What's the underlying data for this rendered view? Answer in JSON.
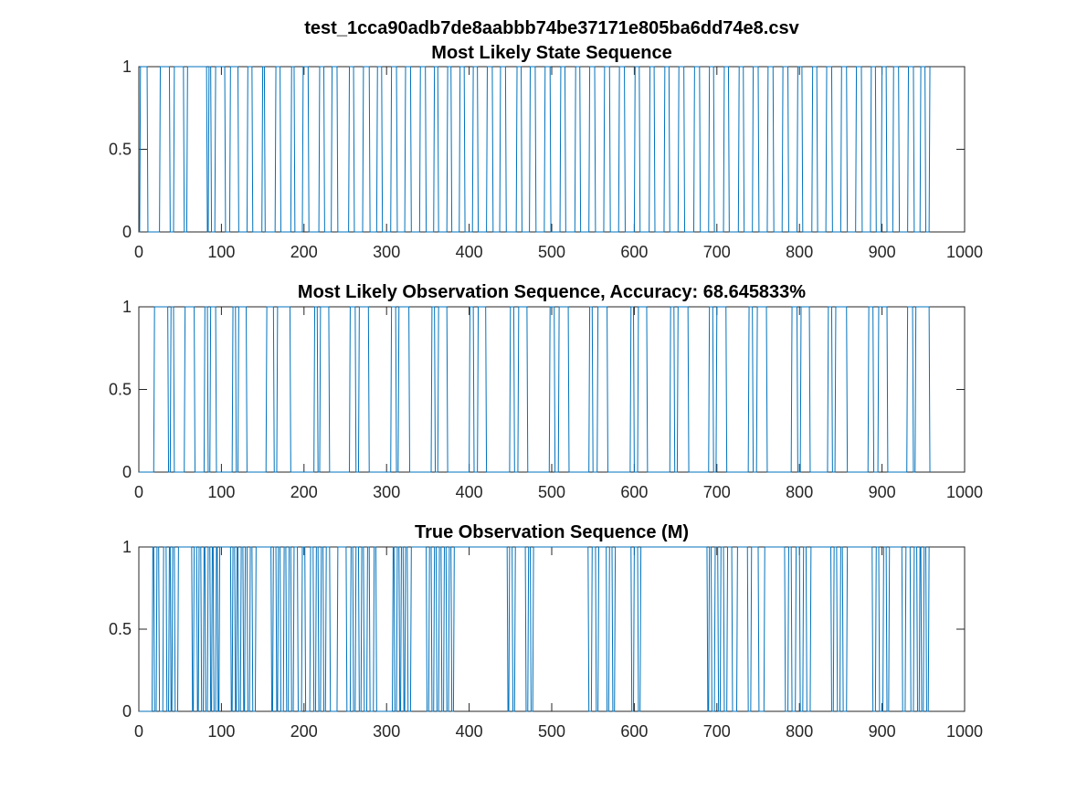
{
  "figure": {
    "suptitle": "test_1cca90adb7de8aabbb74be37171e805ba6dd74e8.csv"
  },
  "colors": {
    "series": "#0072BD",
    "axis": "#262626"
  },
  "chart_data": [
    {
      "type": "line",
      "title": "Most Likely State Sequence",
      "xlabel": "",
      "ylabel": "",
      "xlim": [
        0,
        1000
      ],
      "ylim": [
        0,
        1
      ],
      "xticks": [
        0,
        100,
        200,
        300,
        400,
        500,
        600,
        700,
        800,
        900,
        1000
      ],
      "yticks": [
        0,
        0.5,
        1
      ],
      "xtick_labels": [
        "0",
        "100",
        "200",
        "300",
        "400",
        "500",
        "600",
        "700",
        "800",
        "900",
        "1000"
      ],
      "ytick_labels": [
        "0",
        "0.5",
        "1"
      ],
      "grid": false,
      "step_start_value": 0,
      "transitions_x": [
        1,
        10,
        25,
        37,
        42,
        54,
        58,
        82,
        84,
        87,
        92,
        104,
        110,
        120,
        131,
        137,
        149,
        152,
        165,
        171,
        184,
        188,
        198,
        205,
        218,
        224,
        233,
        240,
        254,
        260,
        271,
        279,
        288,
        294,
        305,
        312,
        322,
        329,
        340,
        347,
        357,
        362,
        373,
        378,
        388,
        394,
        404,
        410,
        421,
        428,
        437,
        444,
        457,
        463,
        473,
        480,
        491,
        498,
        510,
        516,
        528,
        534,
        545,
        552,
        563,
        570,
        581,
        588,
        600,
        606,
        618,
        624,
        636,
        642,
        653,
        660,
        672,
        679,
        690,
        696,
        708,
        714,
        726,
        732,
        743,
        750,
        761,
        768,
        779,
        786,
        797,
        803,
        815,
        821,
        832,
        839,
        850,
        857,
        868,
        875,
        886,
        892,
        899,
        905,
        913,
        920,
        931,
        938,
        946,
        952,
        957
      ]
    },
    {
      "type": "line",
      "title": "Most Likely Observation Sequence, Accuracy: 68.645833%",
      "xlabel": "",
      "ylabel": "",
      "xlim": [
        0,
        1000
      ],
      "ylim": [
        0,
        1
      ],
      "xticks": [
        0,
        100,
        200,
        300,
        400,
        500,
        600,
        700,
        800,
        900,
        1000
      ],
      "yticks": [
        0,
        0.5,
        1
      ],
      "xtick_labels": [
        "0",
        "100",
        "200",
        "300",
        "400",
        "500",
        "600",
        "700",
        "800",
        "900",
        "1000"
      ],
      "ytick_labels": [
        "0",
        "0.5",
        "1"
      ],
      "grid": false,
      "step_start_value": 0,
      "transitions_x": [
        18,
        35,
        38,
        42,
        55,
        67,
        79,
        83,
        86,
        93,
        113,
        117,
        120,
        130,
        154,
        163,
        167,
        183,
        212,
        216,
        219,
        230,
        255,
        262,
        266,
        278,
        305,
        311,
        314,
        327,
        354,
        358,
        362,
        373,
        400,
        405,
        410,
        420,
        449,
        454,
        459,
        470,
        497,
        503,
        508,
        520,
        545,
        549,
        555,
        567,
        595,
        599,
        604,
        615,
        643,
        648,
        652,
        665,
        690,
        695,
        699,
        711,
        738,
        743,
        748,
        760,
        790,
        797,
        801,
        812,
        834,
        839,
        843,
        857,
        883,
        889,
        895,
        906,
        930,
        937,
        940,
        957
      ]
    },
    {
      "type": "line",
      "title": "True Observation Sequence (M)",
      "xlabel": "",
      "ylabel": "",
      "xlim": [
        0,
        1000
      ],
      "ylim": [
        0,
        1
      ],
      "xticks": [
        0,
        100,
        200,
        300,
        400,
        500,
        600,
        700,
        800,
        900,
        1000
      ],
      "yticks": [
        0,
        0.5,
        1
      ],
      "xtick_labels": [
        "0",
        "100",
        "200",
        "300",
        "400",
        "500",
        "600",
        "700",
        "800",
        "900",
        "1000"
      ],
      "ytick_labels": [
        "0",
        "0.5",
        "1"
      ],
      "grid": false,
      "step_start_value": 0,
      "transitions_x": [
        16,
        18,
        21,
        24,
        29,
        33,
        36,
        38,
        40,
        43,
        47,
        64,
        66,
        70,
        72,
        75,
        78,
        80,
        83,
        86,
        88,
        90,
        93,
        95,
        97,
        111,
        113,
        116,
        118,
        120,
        123,
        126,
        128,
        131,
        134,
        137,
        141,
        160,
        162,
        166,
        168,
        171,
        175,
        178,
        181,
        184,
        187,
        192,
        197,
        201,
        207,
        211,
        214,
        217,
        220,
        223,
        226,
        231,
        240,
        251,
        256,
        259,
        262,
        266,
        269,
        272,
        276,
        279,
        284,
        287,
        307,
        309,
        312,
        315,
        317,
        320,
        322,
        325,
        329,
        348,
        351,
        354,
        357,
        360,
        363,
        366,
        369,
        372,
        375,
        378,
        381,
        446,
        448,
        452,
        455,
        468,
        471,
        474,
        477,
        544,
        548,
        553,
        556,
        566,
        569,
        573,
        576,
        596,
        599,
        604,
        607,
        688,
        690,
        693,
        697,
        701,
        704,
        708,
        712,
        718,
        724,
        737,
        741,
        750,
        757,
        782,
        786,
        790,
        795,
        800,
        804,
        808,
        813,
        838,
        841,
        845,
        849,
        852,
        857,
        888,
        892,
        896,
        901,
        905,
        908,
        924,
        928,
        934,
        938,
        942,
        945,
        947,
        950,
        953,
        956
      ]
    }
  ]
}
